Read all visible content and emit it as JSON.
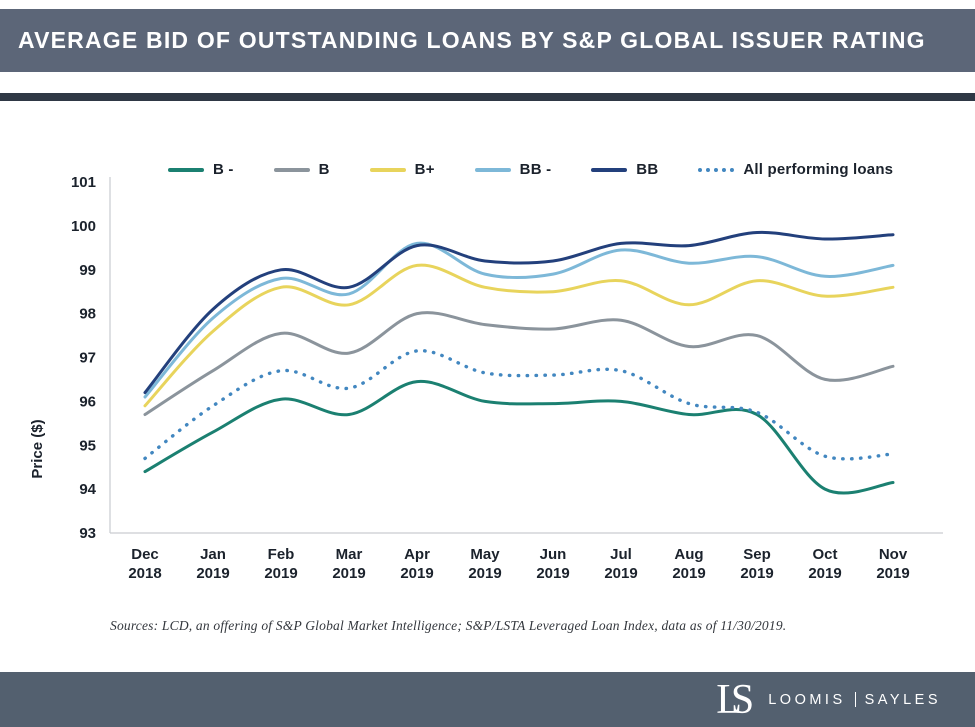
{
  "header": {
    "title": "AVERAGE BID OF OUTSTANDING LOANS BY S&P GLOBAL ISSUER RATING"
  },
  "chart_data": {
    "type": "line",
    "title": "Average Bid of Outstanding Loans by S&P Global Issuer Rating",
    "ylabel": "Price ($)",
    "ylim": [
      93,
      101
    ],
    "yticks": [
      93,
      94,
      95,
      96,
      97,
      98,
      99,
      100,
      101
    ],
    "grid": false,
    "legend_position": "top",
    "categories": [
      "Dec 2018",
      "Jan 2019",
      "Feb 2019",
      "Mar 2019",
      "Apr 2019",
      "May 2019",
      "Jun 2019",
      "Jul 2019",
      "Aug 2019",
      "Sep 2019",
      "Oct 2019",
      "Nov 2019"
    ],
    "series": [
      {
        "name": "B -",
        "style": "solid",
        "color": "#1b8071",
        "values": [
          94.4,
          95.3,
          96.05,
          95.7,
          96.45,
          96.0,
          95.95,
          96.0,
          95.7,
          95.7,
          94.0,
          94.15
        ]
      },
      {
        "name": "B",
        "style": "solid",
        "color": "#8b949c",
        "values": [
          95.7,
          96.7,
          97.55,
          97.1,
          98.0,
          97.75,
          97.65,
          97.85,
          97.25,
          97.5,
          96.5,
          96.8
        ]
      },
      {
        "name": "B+",
        "style": "solid",
        "color": "#e8d45c",
        "values": [
          95.9,
          97.6,
          98.6,
          98.2,
          99.1,
          98.6,
          98.5,
          98.75,
          98.2,
          98.75,
          98.4,
          98.6
        ]
      },
      {
        "name": "BB -",
        "style": "solid",
        "color": "#7db8d8",
        "values": [
          96.1,
          97.9,
          98.8,
          98.45,
          99.6,
          98.9,
          98.9,
          99.45,
          99.15,
          99.3,
          98.85,
          99.1
        ]
      },
      {
        "name": "BB",
        "style": "solid",
        "color": "#23407c",
        "values": [
          96.2,
          98.1,
          99.0,
          98.6,
          99.55,
          99.2,
          99.2,
          99.6,
          99.55,
          99.85,
          99.7,
          99.8
        ]
      },
      {
        "name": "All performing loans",
        "style": "dotted",
        "color": "#4287c0",
        "values": [
          94.7,
          95.9,
          96.7,
          96.3,
          97.15,
          96.65,
          96.6,
          96.7,
          95.95,
          95.75,
          94.75,
          94.8
        ]
      }
    ],
    "axis_color": "#c9ccd0",
    "tick_label_color": "#1b222c"
  },
  "source": {
    "text": "Sources: LCD, an offering of S&P Global Market Intelligence; S&P/LSTA Leveraged Loan Index, data as of 11/30/2019."
  },
  "footer": {
    "monogram_l": "L",
    "monogram_s": "S",
    "name_left": "LOOMIS",
    "name_right": "SAYLES"
  }
}
